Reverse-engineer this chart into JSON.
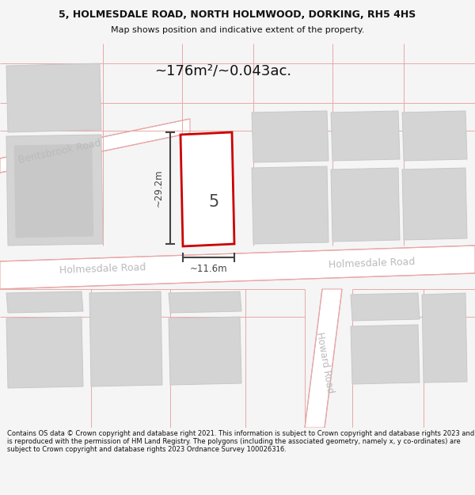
{
  "title_line1": "5, HOLMESDALE ROAD, NORTH HOLMWOOD, DORKING, RH5 4HS",
  "title_line2": "Map shows position and indicative extent of the property.",
  "area_label": "~176m²/~0.043ac.",
  "width_label": "~11.6m",
  "height_label": "~29.2m",
  "property_number": "5",
  "footer_text": "Contains OS data © Crown copyright and database right 2021. This information is subject to Crown copyright and database rights 2023 and is reproduced with the permission of HM Land Registry. The polygons (including the associated geometry, namely x, y co-ordinates) are subject to Crown copyright and database rights 2023 Ordnance Survey 100026316.",
  "bg_color": "#f5f5f5",
  "road_fill": "#ffffff",
  "road_line_color": "#e8a8a8",
  "building_fill": "#d4d4d4",
  "building_outline": "#c8c8c8",
  "property_outline": "#cc0000",
  "property_fill": "#ffffff",
  "dim_color": "#444444",
  "road_label_color": "#bbbbbb",
  "title_color": "#111111",
  "footer_color": "#111111"
}
